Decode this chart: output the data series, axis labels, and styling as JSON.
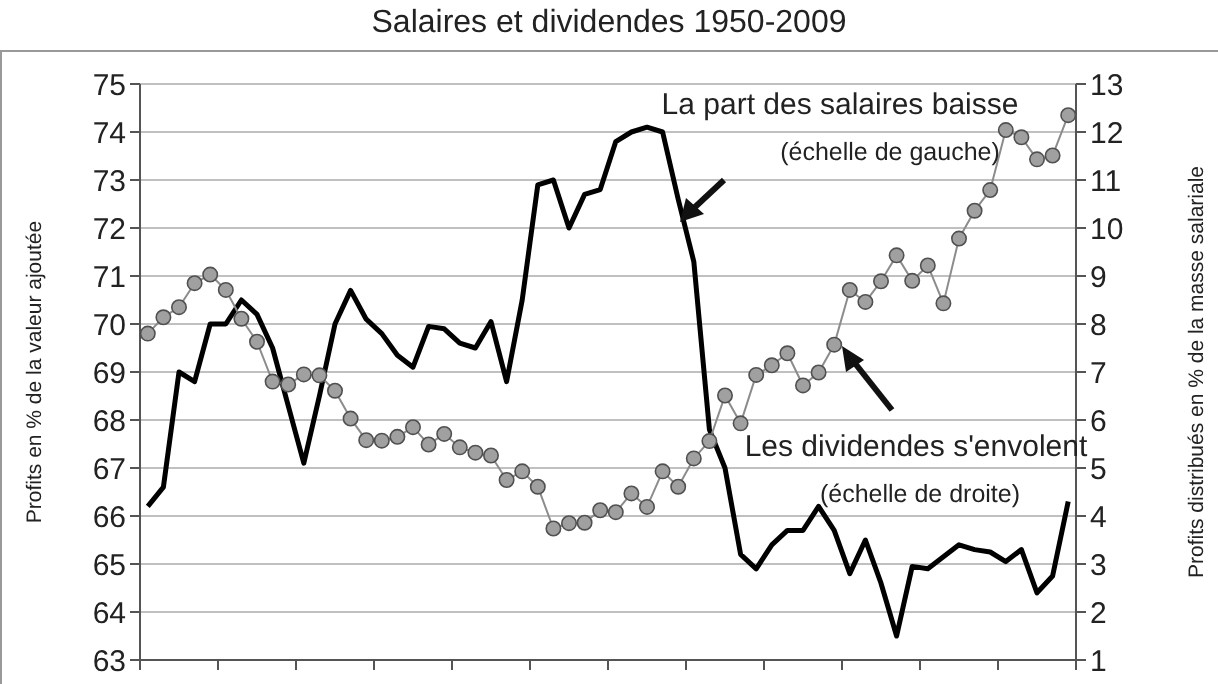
{
  "chart_data": {
    "type": "line",
    "title": "Salaires et dividendes 1950-2009",
    "ylabel": "Profits en % de la valeur ajoutée",
    "y2label": "Profits distribués en % de la masse salariale",
    "annotations": [
      "La part des salaires baisse",
      "(échelle de gauche)",
      "Les dividendes s'envolent",
      "(échelle de droite)"
    ],
    "categories": [
      null,
      null,
      null,
      null,
      null,
      null,
      null,
      null,
      null,
      null,
      null,
      null,
      null,
      null,
      null,
      null,
      null,
      null,
      null,
      null,
      null,
      null,
      null,
      null,
      null,
      null,
      null,
      null,
      null,
      null,
      null,
      null,
      null,
      null,
      null,
      null,
      null,
      null,
      null,
      null,
      null,
      null,
      null,
      null,
      null,
      null,
      null,
      null,
      null,
      null,
      null,
      null,
      null,
      null,
      null,
      null,
      null,
      null,
      null,
      null
    ],
    "series": [
      {
        "color": "#000000",
        "marker": "none",
        "values": [
          66.2,
          66.6,
          69.0,
          68.8,
          70.0,
          70.0,
          70.5,
          70.2,
          69.5,
          68.3,
          67.1,
          68.5,
          70.0,
          70.7,
          70.1,
          69.8,
          69.35,
          69.1,
          69.95,
          69.9,
          69.6,
          69.5,
          70.05,
          68.8,
          70.5,
          72.9,
          73.0,
          72.0,
          72.7,
          72.8,
          73.8,
          74.0,
          74.1,
          74.0,
          72.6,
          71.3,
          67.8,
          67.0,
          65.2,
          64.9,
          65.4,
          65.7,
          65.7,
          66.2,
          65.7,
          64.8,
          65.5,
          64.6,
          63.5,
          64.95,
          64.9,
          65.15,
          65.4,
          65.3,
          65.25,
          65.05,
          65.3,
          64.4,
          64.75,
          66.3
        ]
      },
      {
        "color": "#8c8c8c",
        "marker": "circle",
        "axis": "y2",
        "values": [
          7.8,
          8.14,
          8.35,
          8.85,
          9.03,
          8.71,
          8.11,
          7.63,
          6.8,
          6.74,
          6.95,
          6.93,
          6.61,
          6.03,
          5.58,
          5.57,
          5.65,
          5.85,
          5.49,
          5.71,
          5.43,
          5.32,
          5.26,
          4.75,
          4.93,
          4.61,
          3.74,
          3.85,
          3.86,
          4.12,
          4.08,
          4.47,
          4.19,
          4.93,
          4.61,
          5.2,
          5.56,
          6.51,
          5.93,
          6.94,
          7.14,
          7.39,
          6.72,
          6.99,
          7.57,
          8.71,
          8.46,
          8.89,
          9.43,
          8.9,
          9.22,
          8.43,
          9.78,
          10.36,
          10.79,
          12.04,
          11.89,
          11.43,
          11.51,
          12.35
        ]
      }
    ],
    "ylim": [
      63,
      75
    ],
    "yticks": [
      63,
      64,
      65,
      66,
      67,
      68,
      69,
      70,
      71,
      72,
      73,
      74,
      75
    ],
    "y2lim": [
      1,
      13
    ],
    "y2ticks": [
      1,
      2,
      3,
      4,
      5,
      6,
      7,
      8,
      9,
      10,
      11,
      12,
      13
    ],
    "grid": "y",
    "legend": false,
    "line_style": "solid"
  }
}
